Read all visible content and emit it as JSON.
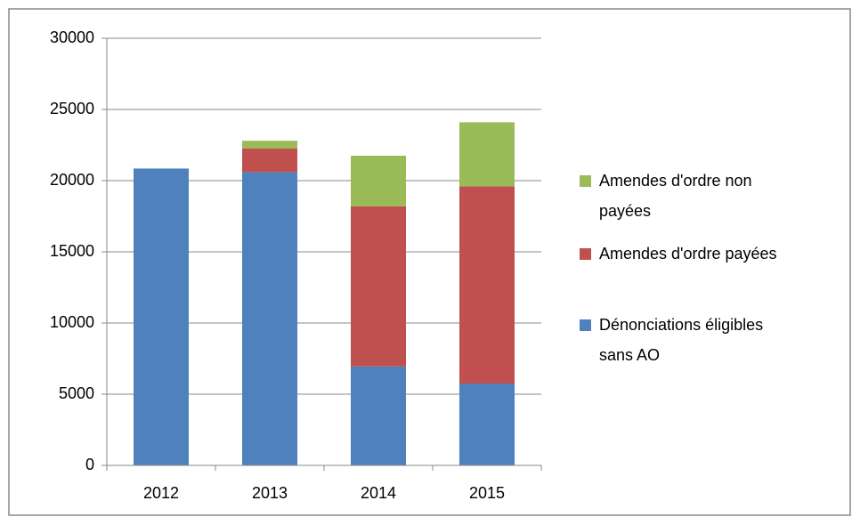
{
  "chart_data": {
    "type": "bar",
    "stacked": true,
    "categories": [
      "2012",
      "2013",
      "2014",
      "2015"
    ],
    "series": [
      {
        "name": "Dénonciations éligibles sans AO",
        "color": "#4f81bd",
        "values": [
          20850,
          20600,
          6950,
          5750
        ]
      },
      {
        "name": "Amendes d'ordre payées",
        "color": "#c0504d",
        "values": [
          0,
          1650,
          11250,
          13850
        ]
      },
      {
        "name": "Amendes d'ordre non payées",
        "color": "#9bbb59",
        "values": [
          0,
          550,
          3550,
          4500
        ]
      }
    ],
    "ylim": [
      0,
      30000
    ],
    "yticks": [
      0,
      5000,
      10000,
      15000,
      20000,
      25000,
      30000
    ],
    "grid": true,
    "legend": "right"
  }
}
